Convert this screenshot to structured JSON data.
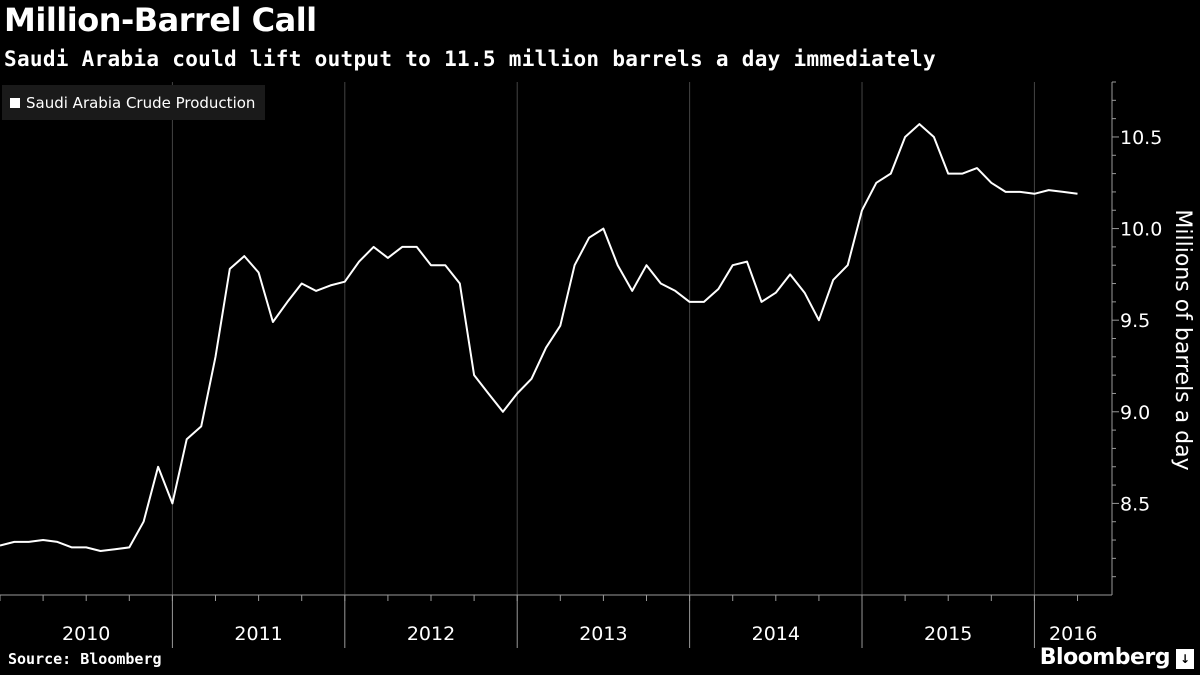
{
  "header": {
    "title": "Million-Barrel Call",
    "subtitle": "Saudi Arabia could lift output to 11.5 million barrels a day immediately"
  },
  "footer": {
    "source": "Source: Bloomberg",
    "brand": "Bloomberg"
  },
  "colors": {
    "background": "#000000",
    "line": "#ffffff",
    "axis": "#9a9a9a"
  },
  "chart_data": {
    "type": "line",
    "ylabel": "Millions of barrels a day",
    "y_axis_position": "right",
    "ylim": [
      8.0,
      10.8
    ],
    "yticks": [
      "8.5",
      "9.0",
      "9.5",
      "10.0",
      "10.5"
    ],
    "xlim": [
      2010.0,
      2016.45
    ],
    "xtick_labels": [
      "2010",
      "2011",
      "2012",
      "2013",
      "2014",
      "2015",
      "2016"
    ],
    "legend_position": "top-left",
    "series": [
      {
        "name": "Saudi Arabia Crude Production",
        "x": [
          2010.0,
          2010.083,
          2010.167,
          2010.25,
          2010.333,
          2010.417,
          2010.5,
          2010.583,
          2010.667,
          2010.75,
          2010.833,
          2010.917,
          2011.0,
          2011.083,
          2011.167,
          2011.25,
          2011.333,
          2011.417,
          2011.5,
          2011.583,
          2011.667,
          2011.75,
          2011.833,
          2011.917,
          2012.0,
          2012.083,
          2012.167,
          2012.25,
          2012.333,
          2012.417,
          2012.5,
          2012.583,
          2012.667,
          2012.75,
          2012.833,
          2012.917,
          2013.0,
          2013.083,
          2013.167,
          2013.25,
          2013.333,
          2013.417,
          2013.5,
          2013.583,
          2013.667,
          2013.75,
          2013.833,
          2013.917,
          2014.0,
          2014.083,
          2014.167,
          2014.25,
          2014.333,
          2014.417,
          2014.5,
          2014.583,
          2014.667,
          2014.75,
          2014.833,
          2014.917,
          2015.0,
          2015.083,
          2015.167,
          2015.25,
          2015.333,
          2015.417,
          2015.5,
          2015.583,
          2015.667,
          2015.75,
          2015.833,
          2015.917,
          2016.0,
          2016.083,
          2016.167,
          2016.25
        ],
        "y": [
          8.27,
          8.29,
          8.29,
          8.3,
          8.29,
          8.26,
          8.26,
          8.24,
          8.25,
          8.26,
          8.4,
          8.7,
          8.5,
          8.85,
          8.92,
          9.3,
          9.78,
          9.85,
          9.76,
          9.49,
          9.6,
          9.7,
          9.66,
          9.69,
          9.71,
          9.82,
          9.9,
          9.84,
          9.9,
          9.9,
          9.8,
          9.8,
          9.7,
          9.2,
          9.1,
          9.0,
          9.1,
          9.18,
          9.35,
          9.47,
          9.8,
          9.95,
          10.0,
          9.8,
          9.66,
          9.8,
          9.7,
          9.66,
          9.6,
          9.6,
          9.67,
          9.8,
          9.82,
          9.6,
          9.65,
          9.75,
          9.65,
          9.5,
          9.72,
          9.8,
          10.1,
          10.25,
          10.3,
          10.5,
          10.57,
          10.5,
          10.3,
          10.3,
          10.33,
          10.25,
          10.2,
          10.2,
          10.19,
          10.21,
          10.2,
          10.19
        ]
      }
    ]
  }
}
